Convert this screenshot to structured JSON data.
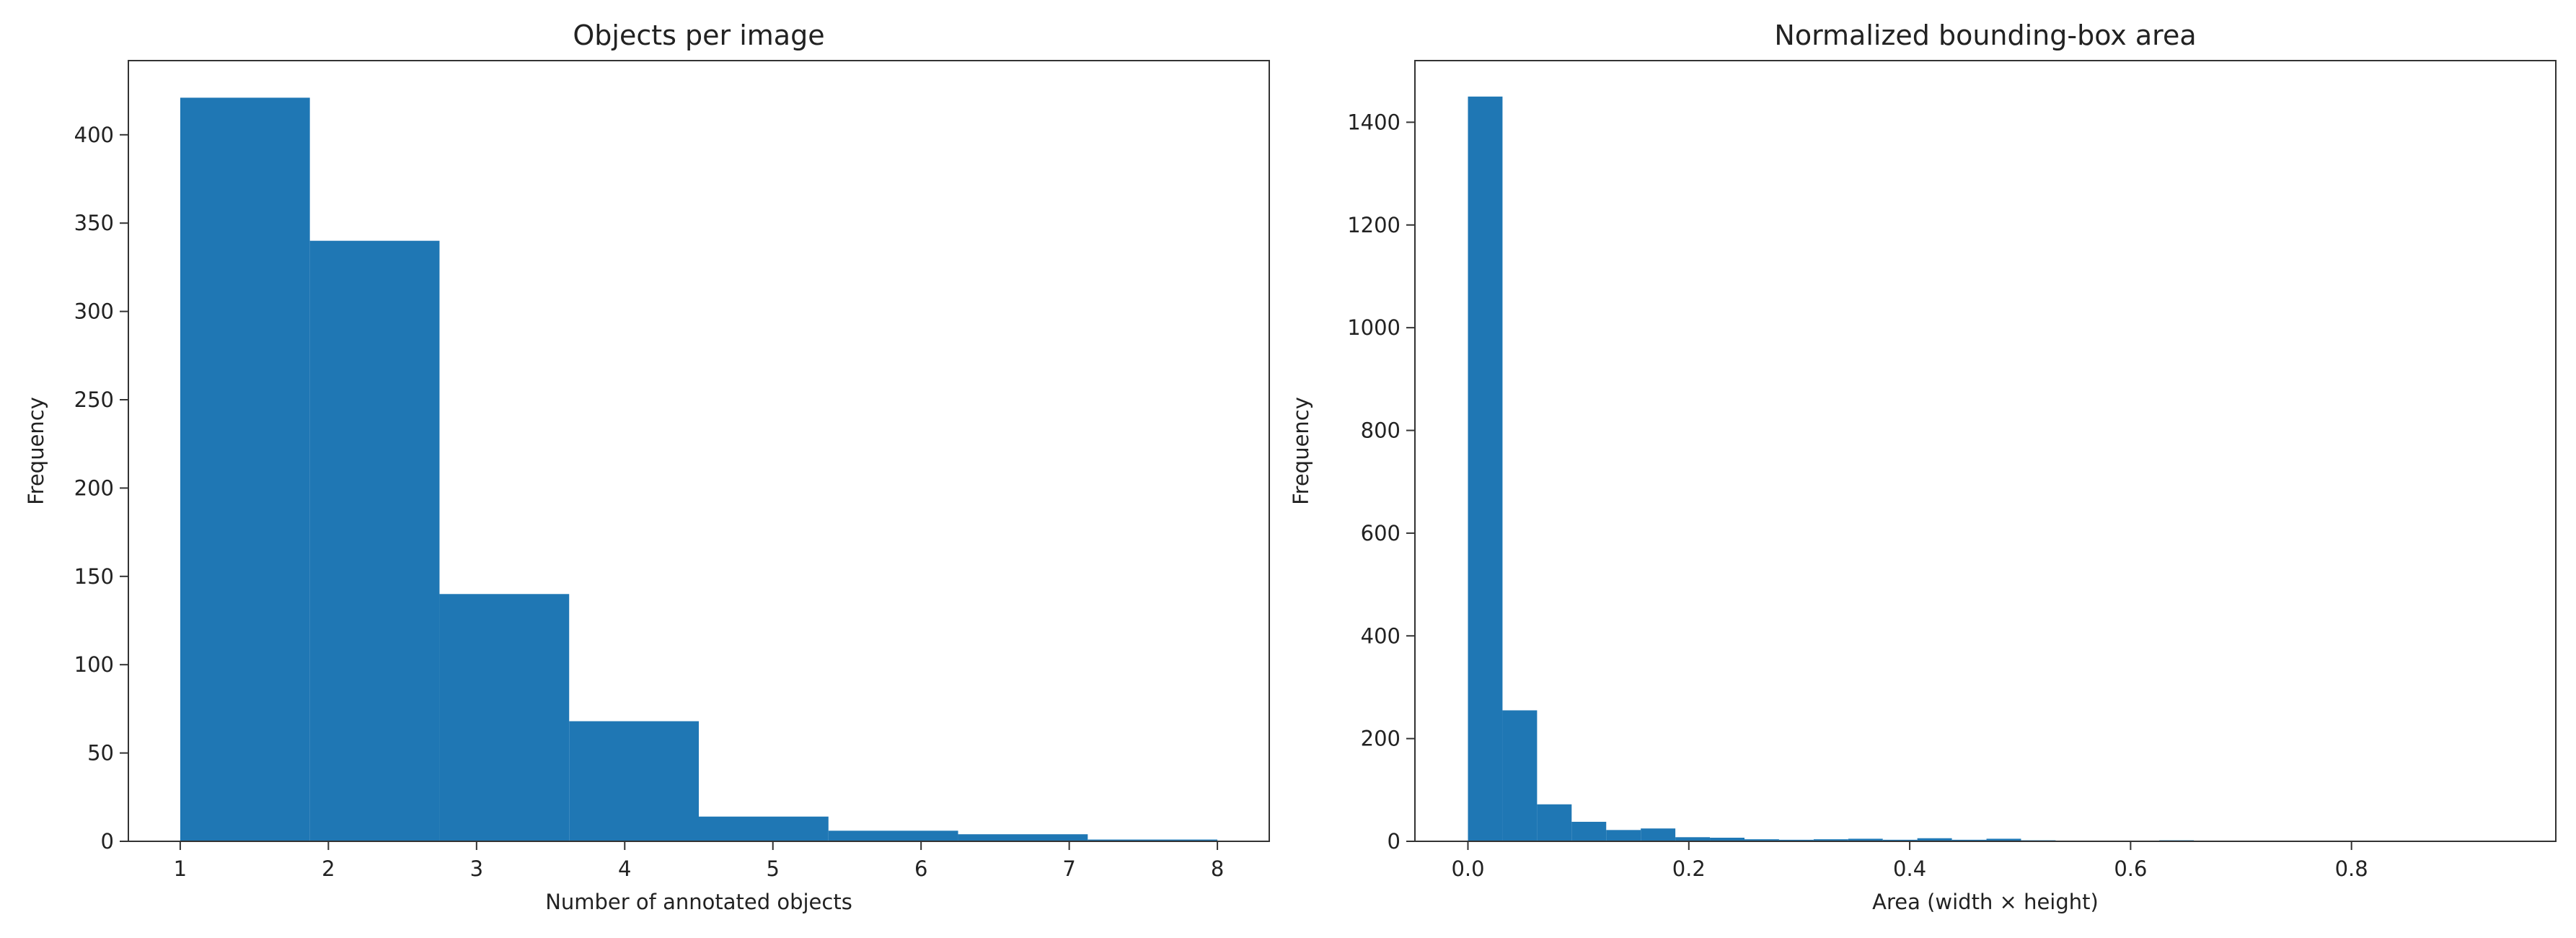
{
  "chart_data": [
    {
      "type": "bar",
      "title": "Objects per image",
      "xlabel": "Number of annotated objects",
      "ylabel": "Frequency",
      "xlim": [
        0.65,
        8.35
      ],
      "ylim": [
        0,
        442
      ],
      "xticks": [
        1,
        2,
        3,
        4,
        5,
        6,
        7,
        8
      ],
      "yticks": [
        0,
        50,
        100,
        150,
        200,
        250,
        300,
        350,
        400
      ],
      "bin_edges": [
        1.0,
        1.875,
        2.75,
        3.625,
        4.5,
        5.375,
        6.25,
        7.125,
        8.0
      ],
      "values": [
        421,
        340,
        140,
        68,
        14,
        6,
        4,
        1
      ],
      "color": "#1f77b4",
      "grid": false
    },
    {
      "type": "bar",
      "title": "Normalized bounding-box area",
      "xlabel": "Area (width × height)",
      "ylabel": "Frequency",
      "xlim": [
        -0.048,
        0.985
      ],
      "ylim": [
        0,
        1520
      ],
      "xticks": [
        0.0,
        0.2,
        0.4,
        0.6,
        0.8
      ],
      "xtick_labels": [
        "0.0",
        "0.2",
        "0.4",
        "0.6",
        "0.8"
      ],
      "yticks": [
        0,
        200,
        400,
        600,
        800,
        1000,
        1200,
        1400
      ],
      "bin_edges": [
        0.0,
        0.0313,
        0.0626,
        0.0939,
        0.1252,
        0.1565,
        0.1878,
        0.2191,
        0.2504,
        0.2817,
        0.313,
        0.3443,
        0.3756,
        0.4069,
        0.4382,
        0.4695,
        0.5008,
        0.5321,
        0.5634,
        0.5947,
        0.626,
        0.6573,
        0.6886,
        0.7199,
        0.7512,
        0.7825,
        0.8138,
        0.8451,
        0.8764,
        0.9077,
        0.939
      ],
      "values": [
        1450,
        255,
        72,
        38,
        22,
        25,
        8,
        7,
        4,
        3,
        4,
        5,
        3,
        6,
        3,
        5,
        2,
        1,
        1,
        0,
        2,
        1,
        1,
        0,
        0,
        0,
        1,
        0,
        0,
        1
      ],
      "color": "#1f77b4",
      "grid": false
    }
  ]
}
